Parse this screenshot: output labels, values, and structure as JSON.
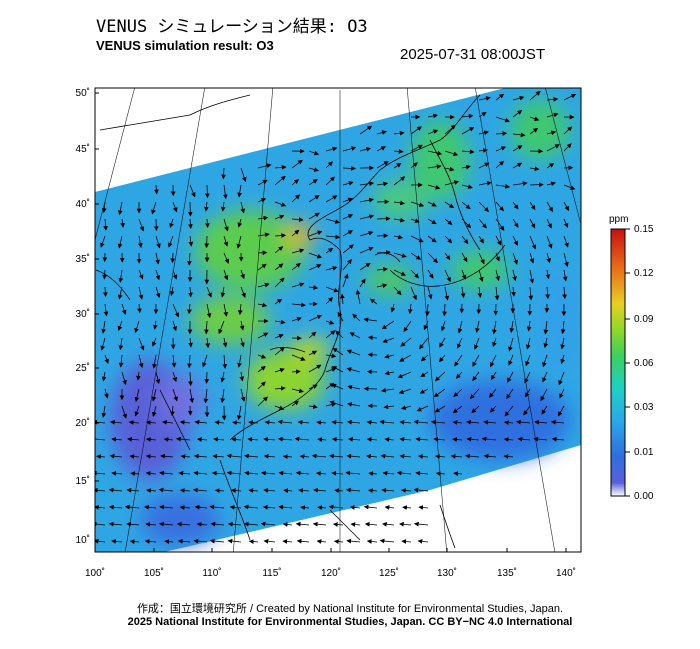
{
  "header": {
    "title_jp": "VENUS シミュレーション結果: O3",
    "title_en": "VENUS simulation result: O3",
    "timestamp": "2025-07-31 08:00JST"
  },
  "map": {
    "lat_labels": [
      "50˚",
      "45˚",
      "40˚",
      "35˚",
      "30˚",
      "25˚",
      "20˚",
      "15˚",
      "10˚"
    ],
    "lon_labels": [
      "100˚",
      "105˚",
      "110˚",
      "115˚",
      "120˚",
      "125˚",
      "130˚",
      "135˚",
      "140˚"
    ],
    "lat_range": [
      9,
      50
    ],
    "lon_range": [
      100,
      141
    ]
  },
  "colorbar": {
    "unit": "ppm",
    "ticks": [
      "0.15",
      "0.12",
      "0.09",
      "0.06",
      "0.03",
      "0.01",
      "0.00"
    ],
    "colors": [
      "#ffffff",
      "#3050d0",
      "#2f8fe8",
      "#1ec8d8",
      "#3cd060",
      "#9ad820",
      "#f0c020",
      "#e06018",
      "#c81010"
    ]
  },
  "credits": {
    "line1": "作成：国立環境研究所 / Created by National Institute for Environmental Studies, Japan.",
    "line2": "2025 National Institute for Environmental Studies, Japan. CC BY−NC 4.0 International"
  }
}
